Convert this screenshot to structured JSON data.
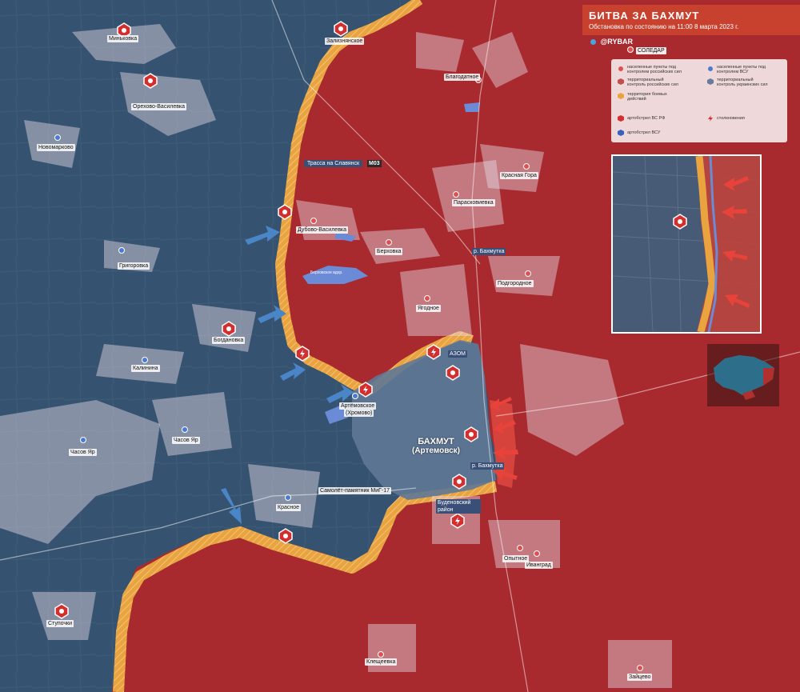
{
  "header": {
    "title": "БИТВА ЗА БАХМУТ",
    "subtitle": "Обстановка по состоянию на 11:00 8 марта 2023 г.",
    "brand": "@RYBAR"
  },
  "legend": {
    "items": [
      {
        "label": "населенные пункты под контролем российских сил",
        "icon": "red-dot-icon"
      },
      {
        "label": "населенные пункты под контролем ВСУ",
        "icon": "blue-dot-icon"
      },
      {
        "label": "территориальный контроль российских сил",
        "icon": "red-hex-icon"
      },
      {
        "label": "территориальный контроль украинских сил",
        "icon": "blue-hex-icon"
      },
      {
        "label": "территория боевых действий",
        "icon": "orange-hatch-icon"
      },
      {
        "label": "артобстрел ВС РФ",
        "icon": "red-artillery-icon"
      },
      {
        "label": "столкновения",
        "icon": "clash-icon"
      },
      {
        "label": "артобстрел ВСУ",
        "icon": "blue-artillery-icon"
      }
    ]
  },
  "colors": {
    "russian_control": "#a8292e",
    "ukrainian_control": "#355370",
    "combat_zone": "#e9a33f",
    "title_bg": "#c8412e"
  },
  "labels": {
    "soledar": "СОЛЕДАР",
    "zaliznyanskoe": "Зализнянское",
    "minkovka": "Миньковка",
    "orekhovo": "Орехово-Василевка",
    "novomarkovo": "Новомарково",
    "blagodatnoe": "Благодатное",
    "krasnaya_gora": "Красная Гора",
    "paraskovievka": "Парасковиевка",
    "dubovo": "Дубово-Василевка",
    "berkhovka": "Берховка",
    "grigorovka": "Григоровка",
    "podgorodnoe": "Подгородное",
    "yagodnoe": "Ягодное",
    "bogdanovka": "Богдановка",
    "kalinina": "Калинина",
    "azom": "АЗОМ",
    "artemovskoe": "Артёмовское",
    "khromovo": "(Хромово)",
    "chasov_yar_west": "Часов Яр",
    "chasov_yar": "Часов Яр",
    "krasnoe": "Красное",
    "mig17": "Самолёт-памятник МиГ-17",
    "budenovsky": "Буденовский район",
    "opytnoe": "Опытное",
    "ivangrad": "Иванград",
    "stupochki": "Ступочки",
    "kleshcheevka": "Клещеевка",
    "zaitsevo": "Зайцево",
    "road_slavyansk": "Трасса на Славянск",
    "road_number": "М03",
    "bakhmut": "БАХМУТ",
    "artemovsk": "(Артемовск)",
    "river1": "р. Бахмутка",
    "river2": "р. Бахмутка",
    "reservoir": "Берховское вдхр."
  }
}
